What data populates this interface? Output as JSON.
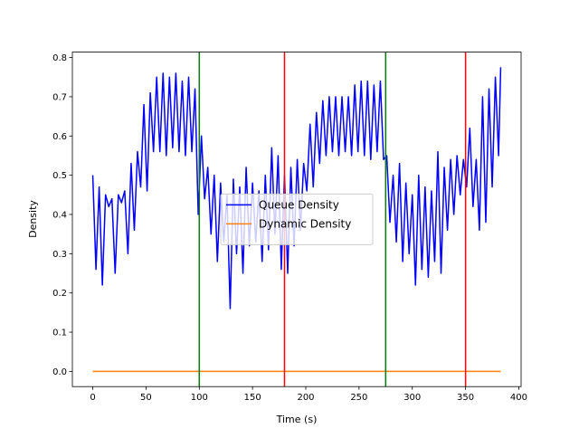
{
  "chart_data": {
    "type": "line",
    "xlabel": "Time (s)",
    "ylabel": "Density",
    "xlim": [
      -19.15,
      402.15
    ],
    "ylim": [
      -0.03875,
      0.81375
    ],
    "xticks": [
      0,
      50,
      100,
      150,
      200,
      250,
      300,
      350,
      400
    ],
    "yticks": [
      {
        "value": 0,
        "label": "0.0"
      },
      0.1,
      0.2,
      0.3,
      0.4,
      0.5,
      0.6,
      0.7,
      0.8
    ],
    "legend": "center",
    "series": [
      {
        "name": "Queue Density",
        "color": "#0000ff",
        "x": [
          0,
          3,
          6,
          9,
          12,
          15,
          18,
          21,
          24,
          27,
          30,
          33,
          36,
          39,
          42,
          45,
          48,
          51,
          54,
          57,
          60,
          63,
          66,
          69,
          72,
          75,
          78,
          81,
          84,
          87,
          90,
          93,
          96,
          99,
          102,
          105,
          108,
          111,
          114,
          117,
          120,
          123,
          126,
          129,
          132,
          135,
          138,
          141,
          144,
          147,
          150,
          153,
          156,
          159,
          162,
          165,
          168,
          171,
          174,
          177,
          180,
          183,
          186,
          189,
          192,
          195,
          198,
          201,
          204,
          207,
          210,
          213,
          216,
          219,
          222,
          225,
          228,
          231,
          234,
          237,
          240,
          243,
          246,
          249,
          252,
          255,
          258,
          261,
          264,
          267,
          270,
          273,
          276,
          279,
          282,
          285,
          288,
          291,
          294,
          297,
          300,
          303,
          306,
          309,
          312,
          315,
          318,
          321,
          324,
          327,
          330,
          333,
          336,
          339,
          342,
          345,
          348,
          351,
          354,
          357,
          360,
          363,
          366,
          369,
          372,
          375,
          378,
          381,
          383
        ],
        "values": [
          0.5,
          0.26,
          0.47,
          0.22,
          0.45,
          0.42,
          0.44,
          0.25,
          0.45,
          0.43,
          0.46,
          0.3,
          0.53,
          0.36,
          0.56,
          0.47,
          0.68,
          0.46,
          0.71,
          0.56,
          0.75,
          0.56,
          0.76,
          0.55,
          0.75,
          0.57,
          0.76,
          0.56,
          0.74,
          0.55,
          0.75,
          0.56,
          0.72,
          0.4,
          0.6,
          0.44,
          0.52,
          0.35,
          0.5,
          0.28,
          0.48,
          0.33,
          0.45,
          0.16,
          0.49,
          0.3,
          0.47,
          0.25,
          0.52,
          0.32,
          0.48,
          0.33,
          0.46,
          0.28,
          0.5,
          0.31,
          0.57,
          0.35,
          0.55,
          0.26,
          0.5,
          0.25,
          0.52,
          0.32,
          0.54,
          0.36,
          0.53,
          0.46,
          0.63,
          0.47,
          0.66,
          0.53,
          0.69,
          0.55,
          0.7,
          0.56,
          0.7,
          0.55,
          0.7,
          0.56,
          0.7,
          0.55,
          0.73,
          0.56,
          0.74,
          0.55,
          0.74,
          0.54,
          0.73,
          0.56,
          0.74,
          0.54,
          0.55,
          0.38,
          0.5,
          0.33,
          0.53,
          0.28,
          0.48,
          0.3,
          0.45,
          0.22,
          0.5,
          0.26,
          0.47,
          0.24,
          0.46,
          0.28,
          0.56,
          0.25,
          0.52,
          0.36,
          0.54,
          0.4,
          0.55,
          0.45,
          0.54,
          0.47,
          0.62,
          0.42,
          0.54,
          0.36,
          0.7,
          0.38,
          0.72,
          0.47,
          0.75,
          0.55,
          0.775
        ]
      },
      {
        "name": "Dynamic Density",
        "color": "#ff7f0e",
        "x": [
          0,
          383
        ],
        "values": [
          0,
          0
        ]
      }
    ],
    "vlines": [
      {
        "x": 100,
        "color": "#008000"
      },
      {
        "x": 180,
        "color": "#ff0000"
      },
      {
        "x": 275,
        "color": "#008000"
      },
      {
        "x": 350,
        "color": "#ff0000"
      }
    ]
  }
}
